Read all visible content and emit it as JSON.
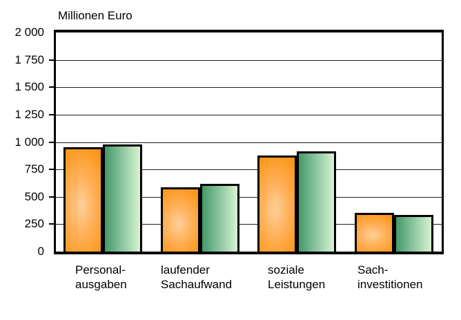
{
  "chart_data": {
    "type": "bar",
    "title": "Millionen Euro",
    "xlabel": "",
    "ylabel": "Millionen Euro",
    "ylim": [
      0,
      2000
    ],
    "ytick_step": 250,
    "ytick_labels": [
      "2 000",
      "1 750",
      "1 500",
      "1 250",
      "1 000",
      "750",
      "500",
      "250",
      "0"
    ],
    "grid": "horizontal",
    "legend": "none",
    "categories": [
      {
        "lines": [
          "Personal-",
          "ausgaben"
        ]
      },
      {
        "lines": [
          "laufender",
          "Sachaufwand"
        ]
      },
      {
        "lines": [
          "soziale",
          "Leistungen"
        ]
      },
      {
        "lines": [
          "Sach-",
          "investitionen"
        ]
      }
    ],
    "series": [
      {
        "name": "series-orange",
        "values": [
          955,
          590,
          875,
          355
        ],
        "gradient": {
          "type": "radial",
          "stops": [
            "#ffd09a",
            "#ffb058",
            "#fa9413"
          ]
        },
        "border_color": "#000000"
      },
      {
        "name": "series-green",
        "values": [
          980,
          620,
          915,
          335
        ],
        "gradient": {
          "type": "horizontal",
          "stops": [
            "#459769",
            "#8cc79f",
            "#d9f2d1"
          ]
        },
        "border_color": "#000000"
      }
    ],
    "category_label_x": [
      109,
      233,
      388,
      518
    ]
  }
}
